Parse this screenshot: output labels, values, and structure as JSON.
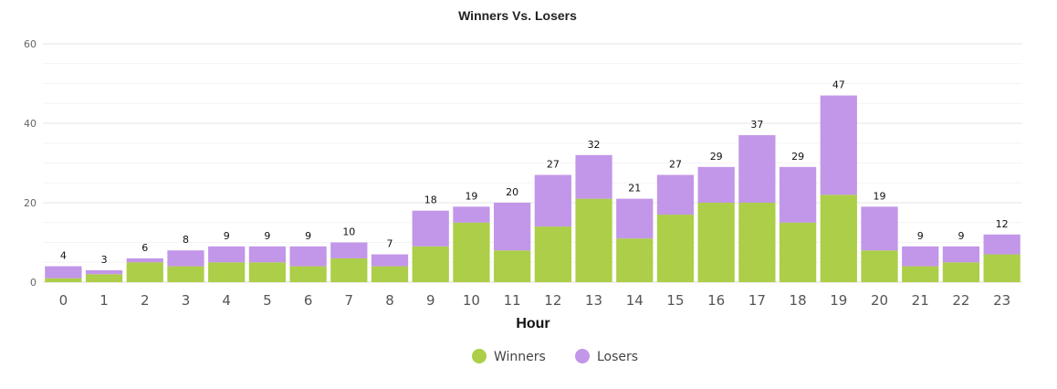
{
  "colors": {
    "winners": "#acce48",
    "losers": "#c296e8"
  },
  "chart_data": {
    "type": "bar",
    "stacked": true,
    "title": "Winners Vs. Losers",
    "xlabel": "Hour",
    "ylabel": "",
    "ylim": [
      0,
      60
    ],
    "yticks": [
      "0",
      "20",
      "40",
      "60"
    ],
    "categories": [
      "0",
      "1",
      "2",
      "3",
      "4",
      "5",
      "6",
      "7",
      "8",
      "9",
      "10",
      "11",
      "12",
      "13",
      "14",
      "15",
      "16",
      "17",
      "18",
      "19",
      "20",
      "21",
      "22",
      "23"
    ],
    "series": [
      {
        "name": "Winners",
        "values": [
          1,
          2,
          5,
          4,
          5,
          5,
          4,
          6,
          4,
          9,
          15,
          8,
          14,
          21,
          11,
          17,
          20,
          20,
          15,
          22,
          8,
          4,
          5,
          7
        ]
      },
      {
        "name": "Losers",
        "values": [
          3,
          1,
          1,
          4,
          4,
          4,
          5,
          4,
          3,
          9,
          4,
          12,
          13,
          11,
          10,
          10,
          9,
          17,
          14,
          25,
          11,
          5,
          4,
          5
        ]
      }
    ],
    "totals": [
      "4",
      "3",
      "6",
      "8",
      "9",
      "9",
      "9",
      "10",
      "7",
      "18",
      "19",
      "20",
      "27",
      "32",
      "21",
      "27",
      "29",
      "37",
      "29",
      "47",
      "19",
      "9",
      "9",
      "12"
    ],
    "grid": true,
    "legend_position": "bottom-center"
  }
}
